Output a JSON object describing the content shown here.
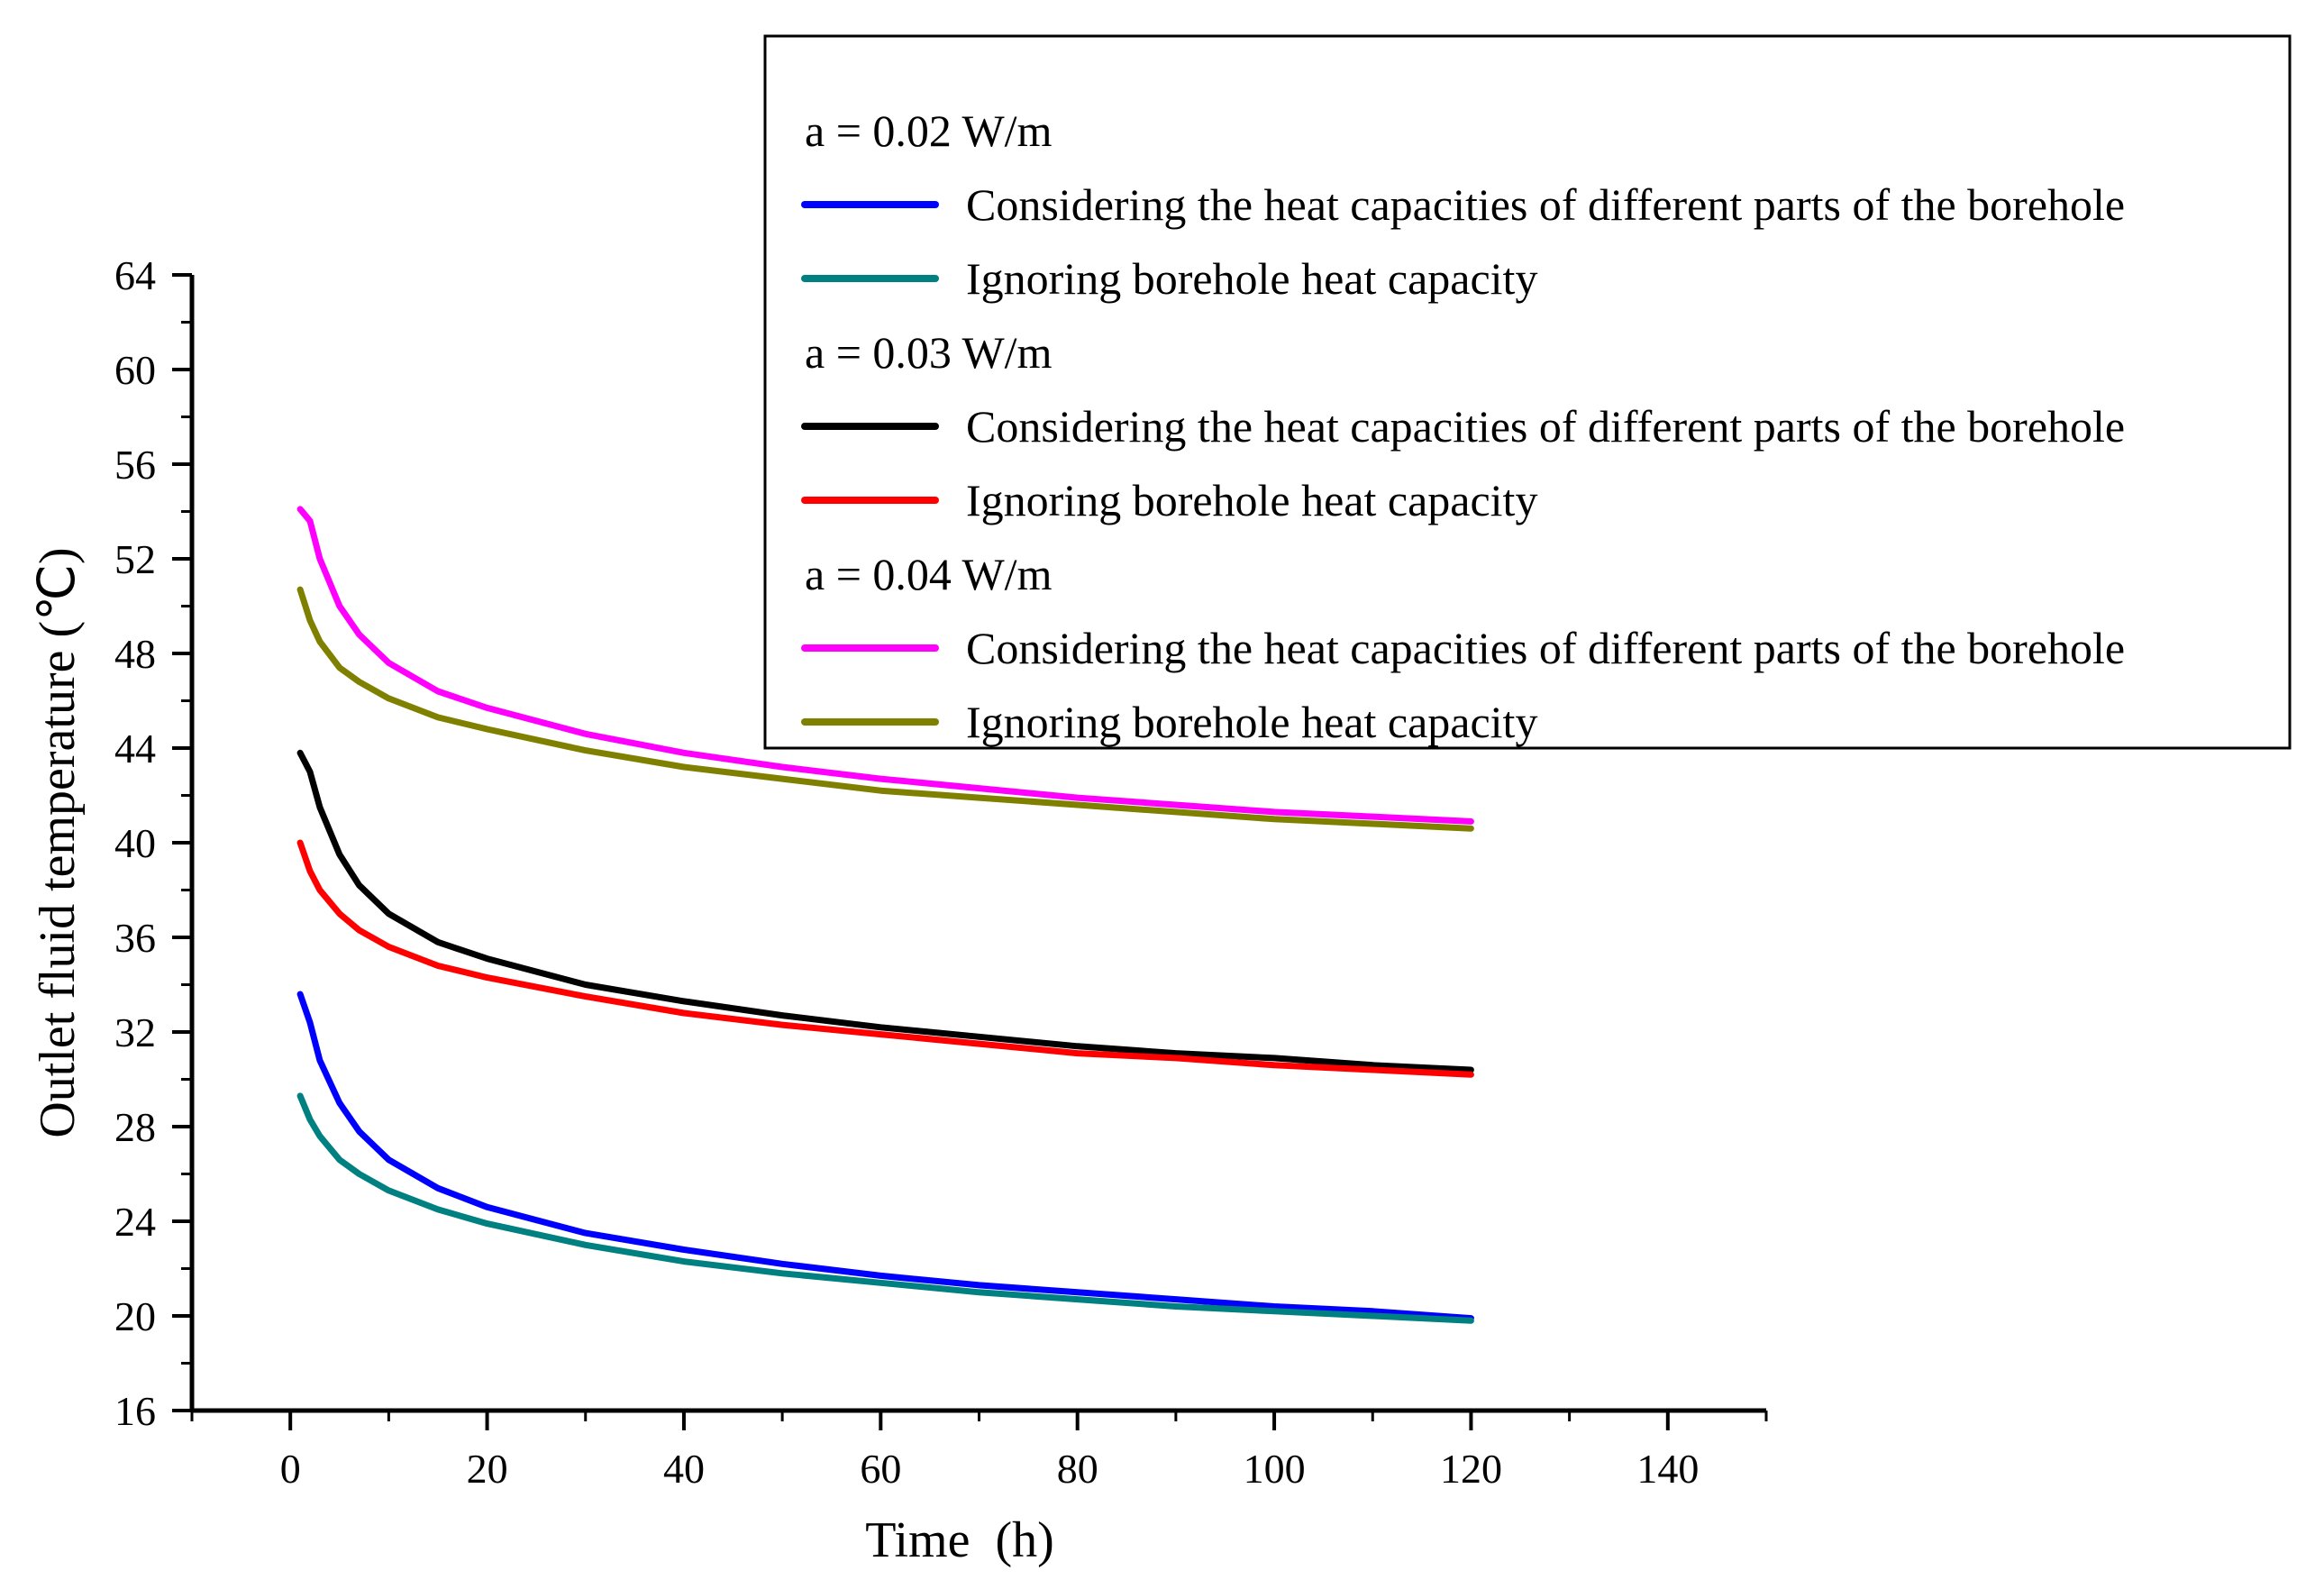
{
  "chart_data": {
    "type": "line",
    "xlabel": "Time  (h)",
    "ylabel": "Outlet fluid temperature (℃)",
    "xlim": [
      -10,
      150
    ],
    "ylim": [
      16,
      64
    ],
    "xticks": [
      0,
      20,
      40,
      60,
      80,
      100,
      120,
      140
    ],
    "yticks": [
      16,
      20,
      24,
      28,
      32,
      36,
      40,
      44,
      48,
      52,
      56,
      60,
      64
    ],
    "grid": false,
    "legend_position": "top-right",
    "legend": [
      {
        "kind": "header",
        "text": "a = 0.02 W/m"
      },
      {
        "kind": "series",
        "series": 0,
        "text": "Considering the heat capacities of different parts of the borehole"
      },
      {
        "kind": "series",
        "series": 1,
        "text": "Ignoring borehole heat capacity"
      },
      {
        "kind": "header",
        "text": "a = 0.03 W/m"
      },
      {
        "kind": "series",
        "series": 2,
        "text": "Considering the heat capacities of different parts of the borehole"
      },
      {
        "kind": "series",
        "series": 3,
        "text": "Ignoring borehole heat capacity"
      },
      {
        "kind": "header",
        "text": "a = 0.04 W/m"
      },
      {
        "kind": "series",
        "series": 4,
        "text": "Considering the heat capacities of different parts of the borehole"
      },
      {
        "kind": "series",
        "series": 5,
        "text": "Ignoring borehole heat capacity"
      }
    ],
    "x": [
      1,
      2,
      3,
      5,
      7,
      10,
      15,
      20,
      30,
      40,
      50,
      60,
      70,
      80,
      90,
      100,
      110,
      120
    ],
    "series": [
      {
        "name": "a = 0.02 W/m, Considering the heat capacities of different parts of the borehole",
        "color": "#0000ff",
        "values": [
          33.6,
          32.4,
          30.8,
          29.0,
          27.8,
          26.6,
          25.4,
          24.6,
          23.5,
          22.8,
          22.2,
          21.7,
          21.3,
          21.0,
          20.7,
          20.4,
          20.2,
          19.9
        ]
      },
      {
        "name": "a = 0.02 W/m, Ignoring borehole heat capacity",
        "color": "#008080",
        "values": [
          29.3,
          28.3,
          27.6,
          26.6,
          26.0,
          25.3,
          24.5,
          23.9,
          23.0,
          22.3,
          21.8,
          21.4,
          21.0,
          20.7,
          20.4,
          20.2,
          20.0,
          19.8
        ]
      },
      {
        "name": "a = 0.03 W/m, Considering the heat capacities of different parts of the borehole",
        "color": "#000000",
        "values": [
          43.8,
          43.0,
          41.5,
          39.5,
          38.2,
          37.0,
          35.8,
          35.1,
          34.0,
          33.3,
          32.7,
          32.2,
          31.8,
          31.4,
          31.1,
          30.9,
          30.6,
          30.4
        ]
      },
      {
        "name": "a = 0.03 W/m, Ignoring borehole heat capacity",
        "color": "#ff0000",
        "values": [
          40.0,
          38.8,
          38.0,
          37.0,
          36.3,
          35.6,
          34.8,
          34.3,
          33.5,
          32.8,
          32.3,
          31.9,
          31.5,
          31.1,
          30.9,
          30.6,
          30.4,
          30.2
        ]
      },
      {
        "name": "a = 0.04 W/m, Considering the heat capacities of different parts of the borehole",
        "color": "#ff00ff",
        "values": [
          54.1,
          53.6,
          52.0,
          50.0,
          48.8,
          47.6,
          46.4,
          45.7,
          44.6,
          43.8,
          43.2,
          42.7,
          42.3,
          41.9,
          41.6,
          41.3,
          41.1,
          40.9
        ]
      },
      {
        "name": "a = 0.04 W/m, Ignoring borehole heat capacity",
        "color": "#808000",
        "values": [
          50.7,
          49.4,
          48.5,
          47.4,
          46.8,
          46.1,
          45.3,
          44.8,
          43.9,
          43.2,
          42.7,
          42.2,
          41.9,
          41.6,
          41.3,
          41.0,
          40.8,
          40.6
        ]
      }
    ]
  }
}
